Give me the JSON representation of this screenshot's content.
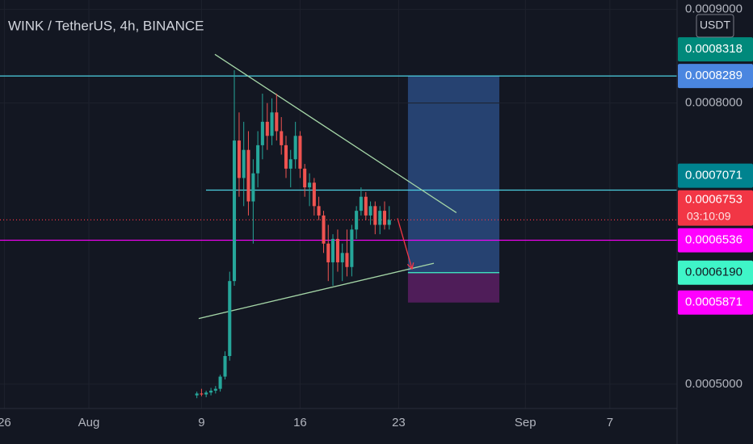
{
  "chart_data": {
    "type": "candlestick",
    "title": "WINK / TetherUS, 4h, BINANCE",
    "currency": "USDT",
    "up_color": "#26a69a",
    "down_color": "#ef5350",
    "x": [
      8.67,
      9.0,
      9.33,
      9.67,
      10.0,
      10.33,
      10.67,
      11.0,
      11.33,
      11.67,
      12.0,
      12.33,
      12.67,
      13.0,
      13.33,
      13.67,
      14.0,
      14.33,
      14.67,
      15.0,
      15.33,
      15.67,
      16.0,
      16.33,
      16.67,
      17.0,
      17.33,
      17.67,
      18.0,
      18.33,
      18.67,
      19.0,
      19.33,
      19.67,
      20.0,
      20.33,
      20.67,
      21.0,
      21.33,
      21.67,
      22.0,
      22.33
    ],
    "open": [
      0.000488,
      0.00049,
      0.000489,
      0.000491,
      0.000493,
      0.000495,
      0.000508,
      0.00053,
      0.00061,
      0.00076,
      0.00072,
      0.00075,
      0.000695,
      0.000725,
      0.000755,
      0.00078,
      0.000765,
      0.00079,
      0.00077,
      0.000755,
      0.00073,
      0.00074,
      0.000765,
      0.00073,
      0.00071,
      0.000715,
      0.00069,
      0.00068,
      0.00065,
      0.00063,
      0.000655,
      0.00063,
      0.00064,
      0.000625,
      0.000665,
      0.000685,
      0.0007,
      0.00068,
      0.00069,
      0.00067,
      0.000685,
      0.00067
    ],
    "high": [
      0.000492,
      0.000495,
      0.000493,
      0.000496,
      0.000498,
      0.00051,
      0.000535,
      0.00062,
      0.000835,
      0.00079,
      0.00078,
      0.00077,
      0.00074,
      0.00077,
      0.00081,
      0.0008,
      0.000805,
      0.00081,
      0.000785,
      0.000765,
      0.00075,
      0.00078,
      0.00077,
      0.000735,
      0.000725,
      0.00072,
      0.0007,
      0.000685,
      0.00067,
      0.00066,
      0.000665,
      0.00065,
      0.000665,
      0.00067,
      0.00069,
      0.00071,
      0.000705,
      0.000695,
      0.000695,
      0.00069,
      0.000695,
      0.00069
    ],
    "low": [
      0.000485,
      0.000487,
      0.000486,
      0.000488,
      0.00049,
      0.000492,
      0.000505,
      0.000525,
      0.000605,
      0.0007,
      0.00069,
      0.00068,
      0.00065,
      0.00071,
      0.00074,
      0.00075,
      0.000755,
      0.00076,
      0.000745,
      0.00072,
      0.00071,
      0.00073,
      0.00072,
      0.0007,
      0.00069,
      0.00068,
      0.000675,
      0.00064,
      0.00061,
      0.000605,
      0.00062,
      0.00061,
      0.000615,
      0.000615,
      0.000655,
      0.00068,
      0.000675,
      0.00067,
      0.00066,
      0.00066,
      0.000665,
      0.000665
    ],
    "close": [
      0.00049,
      0.000489,
      0.000491,
      0.000493,
      0.000495,
      0.000508,
      0.00053,
      0.00061,
      0.00076,
      0.00072,
      0.00075,
      0.000695,
      0.000725,
      0.000755,
      0.00078,
      0.000765,
      0.00079,
      0.00077,
      0.000755,
      0.00073,
      0.00074,
      0.000765,
      0.00073,
      0.00071,
      0.000715,
      0.00069,
      0.00068,
      0.00065,
      0.00063,
      0.000655,
      0.00063,
      0.00064,
      0.000625,
      0.000665,
      0.000685,
      0.0007,
      0.00068,
      0.00069,
      0.00067,
      0.000685,
      0.00067,
      0.0006753
    ],
    "xlim": [
      -5.31,
      42.77
    ],
    "xticks": [
      {
        "value": -5,
        "label": "26"
      },
      {
        "value": 1,
        "label": "Aug"
      },
      9,
      16,
      23,
      {
        "value": 32,
        "label": "Sep"
      },
      {
        "value": 38,
        "label": "7"
      }
    ],
    "ylim": [
      0.000474,
      0.00091
    ],
    "yticks": [
      {
        "value": 0.0005,
        "label": "0.0005000"
      },
      {
        "value": 0.0008,
        "label": "0.0008000"
      },
      {
        "value": 0.0009,
        "label": "0.0009000"
      }
    ],
    "levels": [
      {
        "value": 0.0008318,
        "label": "0.0008318",
        "color": "#00897b",
        "text_color": "#ffffff"
      },
      {
        "value": 0.0008289,
        "label": "0.0008289",
        "color": "#4a86e0",
        "text_color": "#ffffff",
        "line": "solid",
        "line_color": "#4dd0e1",
        "from": -5.31
      },
      {
        "value": 0.0007071,
        "label": "0.0007071",
        "color": "#00838f",
        "text_color": "#ffffff",
        "line": "solid",
        "line_color": "#4dd0e1",
        "from": 9.32
      },
      {
        "value": 0.0006753,
        "label": "0.0006753",
        "color": "#f23645",
        "text_color": "#ffffff",
        "line": "dotted",
        "line_color": "#f23645",
        "from": -5.31
      },
      {
        "value": 0.0006536,
        "label": "0.0006536",
        "color": "#ff00ff",
        "text_color": "#ffffff",
        "line": "solid",
        "line_color": "#ff00ff",
        "from": -5.31
      },
      {
        "value": 0.000619,
        "label": "0.0006190",
        "color": "#3ff5c8",
        "text_color": "#131722",
        "line": "solid",
        "line_color": "#3ff5c8",
        "from": 23.66,
        "to": 30.15
      },
      {
        "value": 0.0005871,
        "label": "0.0005871",
        "color": "#ff00ff",
        "text_color": "#ffffff"
      }
    ],
    "countdown": "03:10:09",
    "zones": [
      {
        "from": 23.66,
        "to": 30.15,
        "low": 0.000619,
        "high": 0.0008289,
        "color": "#2a4a7f"
      },
      {
        "from": 23.66,
        "to": 30.15,
        "low": 0.0005871,
        "high": 0.000619,
        "color": "#5b1f63"
      }
    ],
    "trendlines": [
      {
        "x": [
          9.95,
          27.1
        ],
        "y": [
          0.000852,
          0.000683
        ],
        "color": "#a5d6a7"
      },
      {
        "x": [
          8.8,
          25.5
        ],
        "y": [
          0.00057,
          0.000629
        ],
        "color": "#a5d6a7"
      }
    ],
    "arrow": {
      "x": [
        22.92,
        23.95
      ],
      "y": [
        0.000677,
        0.000623
      ],
      "color": "#f23645"
    }
  }
}
